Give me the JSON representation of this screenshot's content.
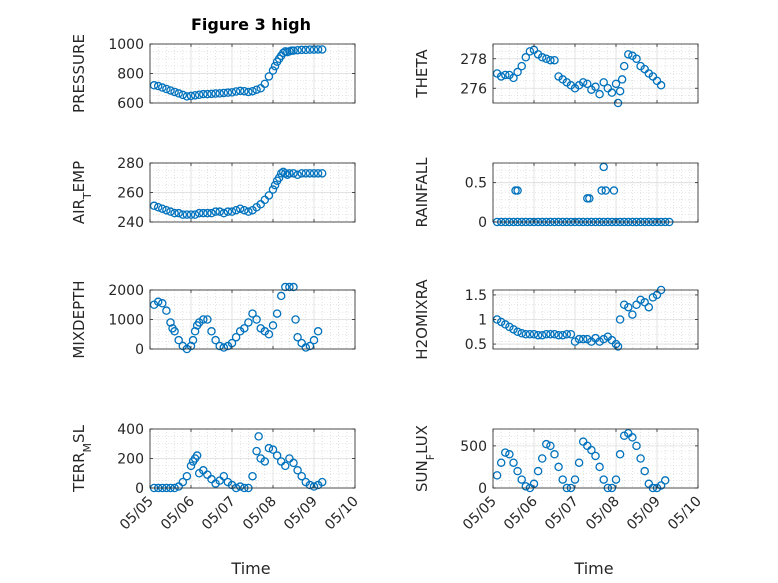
{
  "figure": {
    "title": "Figure 3 high",
    "xlabel": "Time",
    "marker_color": "#0072BD"
  },
  "chart_data": [
    {
      "type": "scatter",
      "ylabel": "PRESSURE",
      "ylim": [
        600,
        1000
      ],
      "yticks": [
        600,
        800,
        1000
      ],
      "xlim": [
        0,
        5
      ],
      "xticks": [
        "05/05",
        "05/06",
        "05/07",
        "05/08",
        "05/09",
        "05/10"
      ],
      "grid": true,
      "x": [
        0.1,
        0.2,
        0.3,
        0.4,
        0.5,
        0.6,
        0.7,
        0.8,
        0.9,
        1.0,
        1.1,
        1.2,
        1.3,
        1.4,
        1.5,
        1.6,
        1.7,
        1.8,
        1.9,
        2.0,
        2.1,
        2.2,
        2.3,
        2.4,
        2.5,
        2.6,
        2.7,
        2.8,
        2.9,
        3.0,
        3.05,
        3.1,
        3.15,
        3.2,
        3.25,
        3.3,
        3.35,
        3.4,
        3.45,
        3.5,
        3.6,
        3.7,
        3.8,
        3.9,
        4.0,
        4.1,
        4.2
      ],
      "y": [
        720,
        715,
        705,
        695,
        685,
        675,
        665,
        655,
        645,
        648,
        652,
        656,
        660,
        660,
        662,
        664,
        665,
        668,
        670,
        672,
        678,
        682,
        680,
        675,
        680,
        690,
        700,
        730,
        780,
        820,
        850,
        880,
        900,
        920,
        940,
        950,
        945,
        950,
        955,
        955,
        958,
        960,
        960,
        962,
        962,
        963,
        963
      ]
    },
    {
      "type": "scatter",
      "ylabel": "THETA",
      "ylim": [
        275,
        279
      ],
      "yticks": [
        276,
        278
      ],
      "xlim": [
        0,
        5
      ],
      "xticks": [
        "05/05",
        "05/06",
        "05/07",
        "05/08",
        "05/09",
        "05/10"
      ],
      "grid": true,
      "x": [
        0.1,
        0.2,
        0.3,
        0.4,
        0.5,
        0.6,
        0.7,
        0.8,
        0.9,
        1.0,
        1.1,
        1.2,
        1.3,
        1.4,
        1.5,
        1.6,
        1.7,
        1.8,
        1.9,
        2.0,
        2.1,
        2.2,
        2.3,
        2.4,
        2.5,
        2.6,
        2.7,
        2.8,
        2.9,
        3.0,
        3.05,
        3.1,
        3.15,
        3.2,
        3.3,
        3.4,
        3.5,
        3.6,
        3.7,
        3.8,
        3.9,
        4.0,
        4.1
      ],
      "y": [
        277.0,
        276.8,
        276.9,
        276.9,
        276.7,
        277.1,
        277.5,
        278.1,
        278.5,
        278.6,
        278.3,
        278.1,
        278.0,
        277.9,
        277.9,
        276.8,
        276.6,
        276.4,
        276.2,
        276.0,
        276.2,
        276.4,
        276.3,
        275.9,
        276.1,
        275.6,
        276.4,
        276.0,
        275.7,
        276.3,
        275.0,
        275.8,
        276.6,
        277.5,
        278.3,
        278.2,
        278.0,
        277.5,
        277.3,
        277.0,
        276.8,
        276.5,
        276.2
      ]
    },
    {
      "type": "scatter",
      "ylabel": "AIR_TEMP",
      "ylim": [
        240,
        280
      ],
      "yticks": [
        240,
        260,
        280
      ],
      "xlim": [
        0,
        5
      ],
      "xticks": [
        "05/05",
        "05/06",
        "05/07",
        "05/08",
        "05/09",
        "05/10"
      ],
      "grid": true,
      "x": [
        0.1,
        0.2,
        0.3,
        0.4,
        0.5,
        0.6,
        0.7,
        0.8,
        0.9,
        1.0,
        1.1,
        1.2,
        1.3,
        1.4,
        1.5,
        1.6,
        1.7,
        1.8,
        1.9,
        2.0,
        2.1,
        2.2,
        2.3,
        2.4,
        2.5,
        2.6,
        2.7,
        2.8,
        2.9,
        3.0,
        3.05,
        3.1,
        3.15,
        3.2,
        3.25,
        3.3,
        3.35,
        3.4,
        3.5,
        3.6,
        3.7,
        3.8,
        3.9,
        4.0,
        4.1,
        4.2
      ],
      "y": [
        251,
        250,
        249,
        248,
        247,
        246,
        246,
        245,
        245,
        245,
        245,
        246,
        246,
        246,
        246,
        247,
        247,
        246,
        247,
        247,
        248,
        249,
        248,
        247,
        248,
        250,
        252,
        255,
        258,
        262,
        265,
        268,
        270,
        273,
        274,
        273,
        272,
        273,
        273,
        272,
        273,
        273,
        273,
        273,
        273,
        273
      ]
    },
    {
      "type": "scatter",
      "ylabel": "RAINFALL",
      "ylim": [
        0,
        0.75
      ],
      "yticks": [
        0,
        0.5
      ],
      "xlim": [
        0,
        5
      ],
      "xticks": [
        "05/05",
        "05/06",
        "05/07",
        "05/08",
        "05/09",
        "05/10"
      ],
      "grid": true,
      "x": [
        0.1,
        0.2,
        0.3,
        0.4,
        0.5,
        0.6,
        0.7,
        0.8,
        0.9,
        1.0,
        1.1,
        1.2,
        1.3,
        1.4,
        1.5,
        1.6,
        1.7,
        1.8,
        1.9,
        2.0,
        2.1,
        2.2,
        2.3,
        2.4,
        2.5,
        2.6,
        2.7,
        2.8,
        2.9,
        3.0,
        3.1,
        3.2,
        3.3,
        3.4,
        3.5,
        3.6,
        3.7,
        3.8,
        3.9,
        4.0,
        4.1,
        4.2,
        4.3,
        0.55,
        0.6,
        2.3,
        2.35,
        2.65,
        2.7,
        2.75,
        2.95
      ],
      "y": [
        0,
        0,
        0,
        0,
        0,
        0,
        0,
        0,
        0,
        0,
        0,
        0,
        0,
        0,
        0,
        0,
        0,
        0,
        0,
        0,
        0,
        0,
        0,
        0,
        0,
        0,
        0,
        0,
        0,
        0,
        0,
        0,
        0,
        0,
        0,
        0,
        0,
        0,
        0,
        0,
        0,
        0,
        0,
        0.4,
        0.4,
        0.3,
        0.3,
        0.4,
        0.7,
        0.4,
        0.4
      ]
    },
    {
      "type": "scatter",
      "ylabel": "MIXDEPTH",
      "ylim": [
        0,
        2000
      ],
      "yticks": [
        0,
        1000,
        2000
      ],
      "xlim": [
        0,
        5
      ],
      "xticks": [
        "05/05",
        "05/06",
        "05/07",
        "05/08",
        "05/09",
        "05/10"
      ],
      "grid": true,
      "x": [
        0.1,
        0.2,
        0.3,
        0.4,
        0.5,
        0.55,
        0.6,
        0.7,
        0.8,
        0.9,
        1.0,
        1.05,
        1.1,
        1.15,
        1.2,
        1.3,
        1.4,
        1.5,
        1.6,
        1.7,
        1.8,
        1.9,
        2.0,
        2.1,
        2.2,
        2.3,
        2.4,
        2.5,
        2.6,
        2.7,
        2.8,
        2.9,
        3.0,
        3.1,
        3.2,
        3.3,
        3.4,
        3.5,
        3.55,
        3.6,
        3.7,
        3.8,
        3.9,
        4.0,
        4.1
      ],
      "y": [
        1500,
        1600,
        1550,
        1300,
        900,
        700,
        600,
        300,
        100,
        0,
        100,
        300,
        600,
        800,
        900,
        1000,
        1000,
        600,
        300,
        100,
        50,
        100,
        200,
        400,
        600,
        700,
        900,
        1200,
        1000,
        700,
        600,
        500,
        800,
        1200,
        1800,
        2100,
        2100,
        2100,
        1000,
        400,
        200,
        50,
        100,
        300,
        600
      ]
    },
    {
      "type": "scatter",
      "ylabel": "H2OMIXRA",
      "ylim": [
        0.4,
        1.6
      ],
      "yticks": [
        0.5,
        1,
        1.5
      ],
      "xlim": [
        0,
        5
      ],
      "xticks": [
        "05/05",
        "05/06",
        "05/07",
        "05/08",
        "05/09",
        "05/10"
      ],
      "grid": true,
      "x": [
        0.1,
        0.2,
        0.3,
        0.4,
        0.5,
        0.6,
        0.7,
        0.8,
        0.9,
        1.0,
        1.1,
        1.2,
        1.3,
        1.4,
        1.5,
        1.6,
        1.7,
        1.8,
        1.9,
        2.0,
        2.1,
        2.2,
        2.3,
        2.4,
        2.5,
        2.6,
        2.7,
        2.8,
        2.9,
        3.0,
        3.05,
        3.1,
        3.2,
        3.3,
        3.4,
        3.5,
        3.6,
        3.7,
        3.8,
        3.9,
        4.0,
        4.1
      ],
      "y": [
        1.0,
        0.95,
        0.9,
        0.85,
        0.8,
        0.75,
        0.72,
        0.7,
        0.7,
        0.7,
        0.68,
        0.68,
        0.7,
        0.7,
        0.7,
        0.68,
        0.68,
        0.7,
        0.7,
        0.55,
        0.6,
        0.6,
        0.6,
        0.55,
        0.62,
        0.55,
        0.6,
        0.65,
        0.58,
        0.5,
        0.45,
        1.0,
        1.3,
        1.25,
        1.1,
        1.3,
        1.4,
        1.35,
        1.25,
        1.45,
        1.5,
        1.6
      ]
    },
    {
      "type": "scatter",
      "ylabel": "TERR_MSL",
      "ylim": [
        0,
        400
      ],
      "yticks": [
        0,
        200,
        400
      ],
      "xlim": [
        0,
        5
      ],
      "xticks": [
        "05/05",
        "05/06",
        "05/07",
        "05/08",
        "05/09",
        "05/10"
      ],
      "grid": true,
      "x": [
        0.1,
        0.2,
        0.3,
        0.4,
        0.5,
        0.6,
        0.7,
        0.8,
        0.9,
        1.0,
        1.05,
        1.1,
        1.15,
        1.2,
        1.3,
        1.4,
        1.5,
        1.6,
        1.7,
        1.8,
        1.9,
        2.0,
        2.1,
        2.2,
        2.3,
        2.4,
        2.5,
        2.6,
        2.65,
        2.7,
        2.8,
        2.9,
        3.0,
        3.1,
        3.2,
        3.3,
        3.4,
        3.5,
        3.6,
        3.7,
        3.8,
        3.9,
        4.0,
        4.1,
        4.2
      ],
      "y": [
        0,
        0,
        0,
        0,
        0,
        0,
        10,
        40,
        80,
        150,
        180,
        200,
        220,
        100,
        120,
        90,
        60,
        30,
        50,
        80,
        40,
        20,
        0,
        10,
        0,
        0,
        80,
        250,
        350,
        200,
        180,
        270,
        260,
        220,
        180,
        150,
        200,
        170,
        120,
        80,
        40,
        20,
        10,
        20,
        40
      ]
    },
    {
      "type": "scatter",
      "ylabel": "SUN_FLUX",
      "ylim": [
        0,
        700
      ],
      "yticks": [
        0,
        500
      ],
      "xlim": [
        0,
        5
      ],
      "xticks": [
        "05/05",
        "05/06",
        "05/07",
        "05/08",
        "05/09",
        "05/10"
      ],
      "grid": true,
      "x": [
        0.1,
        0.2,
        0.3,
        0.4,
        0.5,
        0.6,
        0.7,
        0.8,
        0.9,
        1.0,
        1.1,
        1.2,
        1.3,
        1.4,
        1.5,
        1.6,
        1.7,
        1.8,
        1.9,
        2.0,
        2.1,
        2.2,
        2.3,
        2.4,
        2.5,
        2.6,
        2.7,
        2.8,
        2.9,
        3.0,
        3.1,
        3.2,
        3.3,
        3.4,
        3.5,
        3.6,
        3.7,
        3.8,
        3.9,
        4.0,
        4.1,
        4.2
      ],
      "y": [
        150,
        300,
        420,
        400,
        300,
        200,
        100,
        20,
        0,
        50,
        200,
        350,
        520,
        500,
        400,
        250,
        100,
        0,
        0,
        100,
        300,
        550,
        500,
        450,
        380,
        250,
        100,
        0,
        0,
        100,
        400,
        620,
        650,
        600,
        500,
        350,
        200,
        50,
        0,
        0,
        30,
        90
      ]
    }
  ]
}
